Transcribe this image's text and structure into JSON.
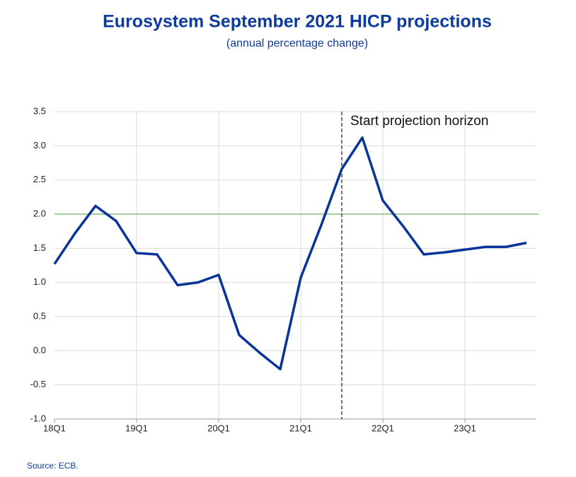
{
  "chart_data": {
    "type": "line",
    "title": "Eurosystem September 2021 HICP projections",
    "subtitle": "(annual percentage change)",
    "source": "Source: ECB.",
    "annotation": "Start projection horizon",
    "projection_start_index": 14,
    "reference_value": 2.0,
    "reference_color": "#7fbf7f",
    "categories": [
      "18Q1",
      null,
      null,
      null,
      "19Q1",
      null,
      null,
      null,
      "20Q1",
      null,
      null,
      null,
      "21Q1",
      null,
      null,
      null,
      "22Q1",
      null,
      null,
      null,
      "23Q1",
      null,
      null,
      null
    ],
    "series": [
      {
        "color": "#0a3399",
        "values": [
          1.27,
          1.72,
          2.12,
          1.9,
          1.43,
          1.41,
          0.96,
          1.0,
          1.11,
          0.23,
          -0.03,
          -0.27,
          1.07,
          1.84,
          2.66,
          3.12,
          2.2,
          1.82,
          1.41,
          1.44,
          1.48,
          1.52,
          1.52,
          1.58
        ]
      }
    ],
    "ylim": [
      -1.0,
      3.5
    ],
    "yticks": [
      {
        "value": -1.0,
        "label": "-1.0"
      },
      -0.5,
      {
        "value": 0.0,
        "label": "0.0"
      },
      0.5,
      {
        "value": 1.0,
        "label": "1.0"
      },
      1.5,
      {
        "value": 2.0,
        "label": "2.0"
      },
      2.5,
      {
        "value": 3.0,
        "label": "3.0"
      },
      3.5
    ],
    "grid": true
  }
}
